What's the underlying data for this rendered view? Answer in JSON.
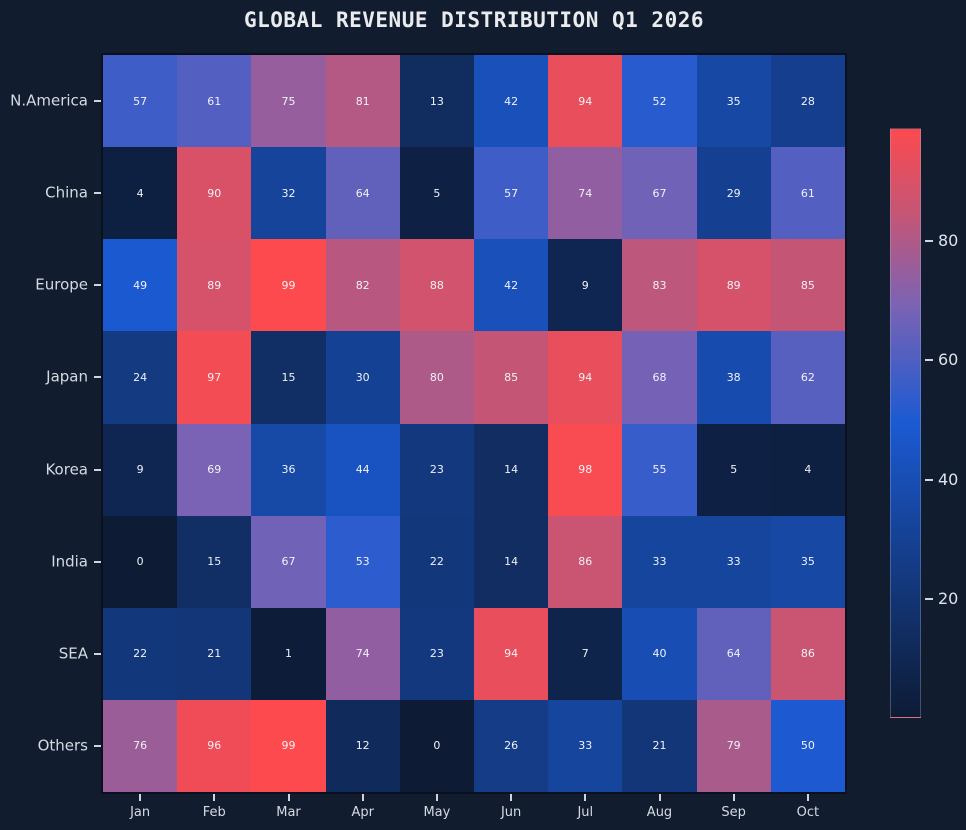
{
  "chart_data": {
    "type": "heatmap",
    "title": "GLOBAL REVENUE DISTRIBUTION Q1 2026",
    "x_categories": [
      "Jan",
      "Feb",
      "Mar",
      "Apr",
      "May",
      "Jun",
      "Jul",
      "Aug",
      "Sep",
      "Oct"
    ],
    "y_categories": [
      "N.America",
      "China",
      "Europe",
      "Japan",
      "Korea",
      "India",
      "SEA",
      "Others"
    ],
    "values": [
      [
        57,
        61,
        75,
        81,
        13,
        42,
        94,
        52,
        35,
        28
      ],
      [
        4,
        90,
        32,
        64,
        5,
        57,
        74,
        67,
        29,
        61
      ],
      [
        49,
        89,
        99,
        82,
        88,
        42,
        9,
        83,
        89,
        85
      ],
      [
        24,
        97,
        15,
        30,
        80,
        85,
        94,
        68,
        38,
        62
      ],
      [
        9,
        69,
        36,
        44,
        23,
        14,
        98,
        55,
        5,
        4
      ],
      [
        0,
        15,
        67,
        53,
        22,
        14,
        86,
        33,
        33,
        35
      ],
      [
        22,
        21,
        1,
        74,
        23,
        94,
        7,
        40,
        64,
        86
      ],
      [
        76,
        96,
        99,
        12,
        0,
        26,
        33,
        21,
        79,
        50
      ]
    ],
    "value_range": [
      0,
      99
    ],
    "cell_value_labels": true,
    "grid": false,
    "legend": false,
    "colorbar": {
      "position": "right",
      "ticks": [
        20,
        40,
        60,
        80
      ]
    },
    "colormap": [
      {
        "pos": 0.0,
        "color": "#0d1b35"
      },
      {
        "pos": 0.5,
        "color": "#1b5ad2"
      },
      {
        "pos": 0.7,
        "color": "#7b63b4"
      },
      {
        "pos": 0.85,
        "color": "#c25677"
      },
      {
        "pos": 1.0,
        "color": "#fc4a4f"
      }
    ]
  },
  "colors": {
    "background": "#111c2e",
    "title_text": "#e9ebee",
    "tick_label_text": "#d5dae2",
    "cell_text": "#f0f2f7",
    "plot_border": "#0a101d"
  }
}
